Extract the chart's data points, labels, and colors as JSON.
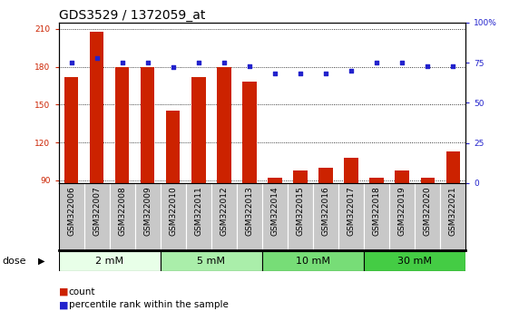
{
  "title": "GDS3529 / 1372059_at",
  "categories": [
    "GSM322006",
    "GSM322007",
    "GSM322008",
    "GSM322009",
    "GSM322010",
    "GSM322011",
    "GSM322012",
    "GSM322013",
    "GSM322014",
    "GSM322015",
    "GSM322016",
    "GSM322017",
    "GSM322018",
    "GSM322019",
    "GSM322020",
    "GSM322021"
  ],
  "bar_values": [
    172,
    208,
    180,
    180,
    145,
    172,
    180,
    168,
    92,
    98,
    100,
    108,
    92,
    98,
    92,
    113
  ],
  "dot_values_pct": [
    75,
    78,
    75,
    75,
    72,
    75,
    75,
    73,
    68,
    68,
    68,
    70,
    75,
    75,
    73,
    73
  ],
  "bar_color": "#cc2200",
  "dot_color": "#2222cc",
  "ylim_left": [
    88,
    215
  ],
  "ylim_right": [
    0,
    100
  ],
  "yticks_left": [
    90,
    120,
    150,
    180,
    210
  ],
  "yticks_right": [
    0,
    25,
    50,
    75,
    100
  ],
  "ytick_labels_right": [
    "0",
    "25",
    "50",
    "75",
    "100%"
  ],
  "dose_groups": [
    {
      "label": "2 mM",
      "start": 0,
      "end": 3,
      "color": "#e8ffe8"
    },
    {
      "label": "5 mM",
      "start": 4,
      "end": 7,
      "color": "#aaeeaa"
    },
    {
      "label": "10 mM",
      "start": 8,
      "end": 11,
      "color": "#77dd77"
    },
    {
      "label": "30 mM",
      "start": 12,
      "end": 15,
      "color": "#44cc44"
    }
  ],
  "dose_label": "dose",
  "legend_count_label": "count",
  "legend_pct_label": "percentile rank within the sample",
  "background_color": "#ffffff",
  "plot_bg_color": "#ffffff",
  "tick_area_color": "#c8c8c8",
  "title_fontsize": 10,
  "tick_label_fontsize": 6.5
}
